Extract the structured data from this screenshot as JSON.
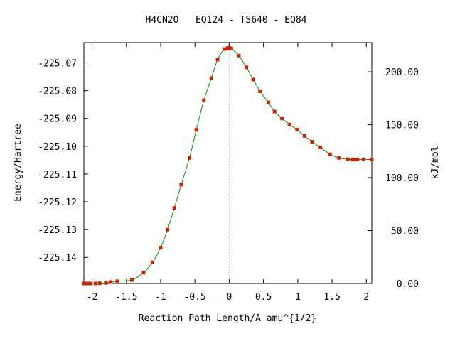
{
  "chart_data": {
    "type": "line",
    "title": "H4CN2O   EQ124 - TS640 - EQ84",
    "xlabel": "Reaction Path Length/A amu^{1/2}",
    "ylabel_left": "Energy/Hartree",
    "ylabel_right": "kJ/mol",
    "xlim": [
      -2.12,
      2.08
    ],
    "ylim": [
      -225.1494,
      -225.0627
    ],
    "x_ticks": [
      -2,
      -1.5,
      -1,
      -0.5,
      0,
      0.5,
      1,
      1.5,
      2
    ],
    "x_tick_labels": [
      "-2",
      "-1.5",
      "-1",
      "-0.5",
      "0",
      "0.5",
      "1",
      "1.5",
      "2"
    ],
    "y_left_ticks": [
      -225.07,
      -225.08,
      -225.09,
      -225.1,
      -225.11,
      -225.12,
      -225.13,
      -225.14
    ],
    "y_left_tick_labels": [
      "-225.07",
      "-225.08",
      "-225.09",
      "-225.10",
      "-225.11",
      "-225.12",
      "-225.13",
      "-225.14"
    ],
    "y_right_ticks_kjmol": [
      0,
      50,
      100,
      150,
      200
    ],
    "y_right_tick_labels": [
      "0.00",
      "50.00",
      "100.00",
      "150.00",
      "200.00"
    ],
    "right_axis_zero_hartree": -225.1494,
    "hartree_to_kjmol": 2625.5,
    "ts_marker_x": 0,
    "colors": {
      "curve": "#009900",
      "points": "#cc2200",
      "ts_line": "#888888"
    },
    "series": [
      {
        "x": [
          -2.12,
          -2.09,
          -2.06,
          -2.02,
          -1.95,
          -1.89,
          -1.8,
          -1.73,
          -1.63,
          -1.42,
          -1.25,
          -1.12,
          -1.0,
          -0.9,
          -0.8,
          -0.7,
          -0.58,
          -0.48,
          -0.37,
          -0.26,
          -0.17,
          -0.07,
          -0.02,
          0.0,
          0.03,
          0.14,
          0.25,
          0.35,
          0.45,
          0.57,
          0.66,
          0.77,
          0.88,
          0.99,
          1.1,
          1.21,
          1.33,
          1.47,
          1.6,
          1.73,
          1.8,
          1.83,
          1.87,
          1.96,
          2.08
        ],
        "y": [
          -225.1494,
          -225.1494,
          -225.1494,
          -225.1494,
          -225.1494,
          -225.1493,
          -225.1492,
          -225.1489,
          -225.1486,
          -225.1481,
          -225.1455,
          -225.1418,
          -225.1365,
          -225.13,
          -225.1222,
          -225.1138,
          -225.1042,
          -225.0941,
          -225.0835,
          -225.0755,
          -225.0688,
          -225.065,
          -225.0647,
          -225.0646,
          -225.0648,
          -225.0674,
          -225.0716,
          -225.076,
          -225.0802,
          -225.0842,
          -225.0875,
          -225.09,
          -225.0922,
          -225.094,
          -225.0963,
          -225.0984,
          -225.1004,
          -225.1029,
          -225.1042,
          -225.1047,
          -225.1048,
          -225.1048,
          -225.1048,
          -225.1047,
          -225.1048
        ]
      }
    ]
  }
}
